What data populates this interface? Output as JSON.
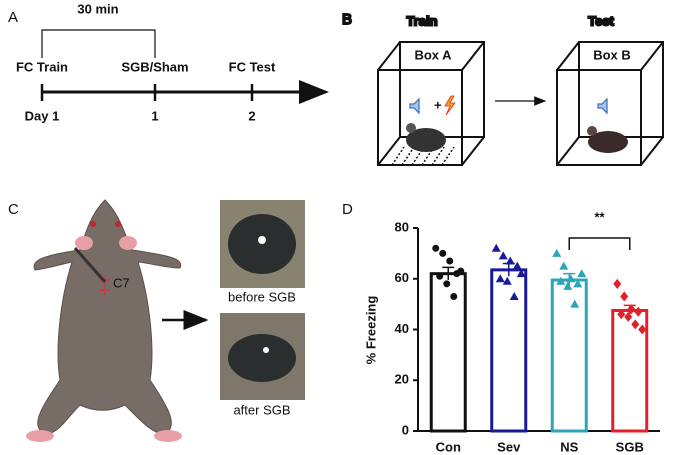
{
  "panel_a": {
    "label": "A",
    "interval": "30 min",
    "events": [
      "FC Train",
      "SGB/Sham",
      "FC Test"
    ],
    "days": [
      "Day 1",
      "1",
      "2"
    ]
  },
  "panel_b": {
    "label": "B",
    "train": "Train",
    "test": "Test",
    "box_a": "Box A",
    "box_b": "Box B"
  },
  "panel_c": {
    "label": "C",
    "site": "C7",
    "before": "before SGB",
    "after": "after SGB"
  },
  "panel_d": {
    "label": "D"
  },
  "chart_data": {
    "type": "bar",
    "ylabel": "% Freezing",
    "categories": [
      "Con",
      "Sev",
      "NS",
      "SGB"
    ],
    "values": [
      62,
      63.5,
      59.5,
      47.5
    ],
    "errors": [
      2.5,
      2.5,
      2.5,
      2
    ],
    "points": [
      [
        72,
        70,
        67,
        62,
        61,
        58,
        53,
        63
      ],
      [
        72,
        69,
        67,
        65,
        60,
        59,
        53,
        62
      ],
      [
        70,
        65,
        60,
        58,
        59,
        57,
        50,
        62
      ],
      [
        58,
        53,
        48,
        47,
        46,
        45,
        42,
        40
      ]
    ],
    "colors": [
      "#111111",
      "#1a1a99",
      "#2aa6b8",
      "#e0202a"
    ],
    "markers": [
      "circle",
      "triangle",
      "triangle",
      "diamond"
    ],
    "ylim": [
      0,
      80
    ],
    "yticks": [
      0,
      20,
      40,
      60,
      80
    ],
    "annotation": "**"
  }
}
